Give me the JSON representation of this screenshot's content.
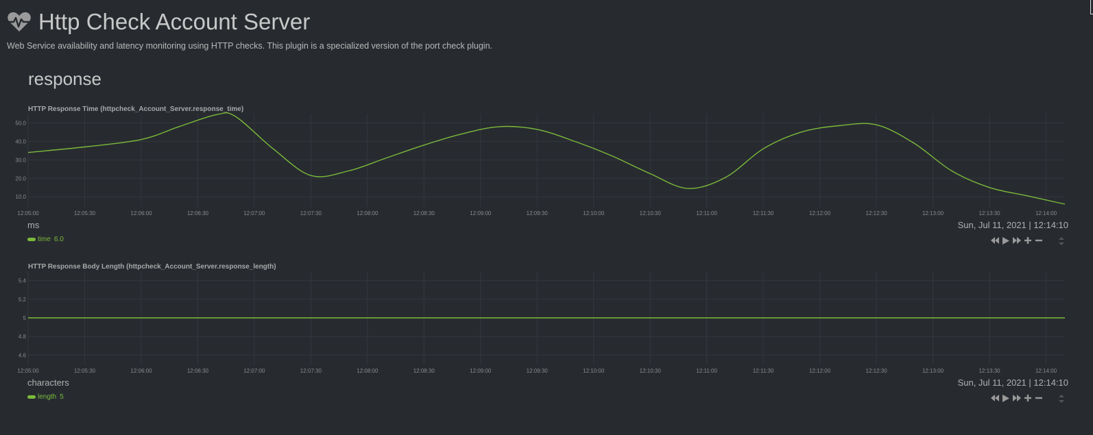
{
  "header": {
    "title": "Http Check Account Server",
    "subtitle": "Web Service availability and latency monitoring using HTTP checks. This plugin is a specialized version of the port check plugin.",
    "icon": "heartbeat-icon"
  },
  "section": {
    "title": "response"
  },
  "colors": {
    "background": "#272b30",
    "series": "#7cba3a",
    "grid": "#34383e",
    "text": "#c8c8c8"
  },
  "charts": [
    {
      "title": "HTTP Response Time (httpcheck_Account_Server.response_time)",
      "unit": "ms",
      "date": "Sun, Jul 11, 2021 | 12:14:10",
      "legend": {
        "name": "time",
        "value": "6.0"
      }
    },
    {
      "title": "HTTP Response Body Length (httpcheck_Account_Server.response_length)",
      "unit": "characters",
      "date": "Sun, Jul 11, 2021 | 12:14:10",
      "legend": {
        "name": "length",
        "value": "5"
      }
    }
  ],
  "toolbox": [
    "rewind-icon",
    "play-icon",
    "fast-forward-icon",
    "zoom-in-icon",
    "zoom-out-icon"
  ],
  "chart_data": [
    {
      "type": "line",
      "title": "HTTP Response Time (httpcheck_Account_Server.response_time)",
      "ylabel": "ms",
      "ylim": [
        4.5,
        55
      ],
      "yticks": [
        "10.0",
        "20.0",
        "30.0",
        "40.0",
        "50.0"
      ],
      "ytick_values": [
        10,
        20,
        30,
        40,
        50
      ],
      "xlim": [
        "12:05:00",
        "12:14:10"
      ],
      "xticks": [
        "12:05:00",
        "12:05:30",
        "12:06:00",
        "12:06:30",
        "12:07:00",
        "12:07:30",
        "12:08:00",
        "12:08:30",
        "12:09:00",
        "12:09:30",
        "12:10:00",
        "12:10:30",
        "12:11:00",
        "12:11:30",
        "12:12:00",
        "12:12:30",
        "12:13:00",
        "12:13:30",
        "12:14:00"
      ],
      "grid": true,
      "series": [
        {
          "name": "time",
          "x": [
            "12:05:00",
            "12:05:30",
            "12:06:00",
            "12:06:20",
            "12:06:40",
            "12:06:50",
            "12:07:10",
            "12:07:30",
            "12:07:50",
            "12:08:10",
            "12:08:30",
            "12:08:50",
            "12:09:10",
            "12:09:30",
            "12:09:50",
            "12:10:10",
            "12:10:30",
            "12:10:50",
            "12:11:10",
            "12:11:30",
            "12:11:50",
            "12:12:10",
            "12:12:30",
            "12:12:50",
            "12:13:10",
            "12:13:30",
            "12:13:50",
            "12:14:10"
          ],
          "values": [
            34.0,
            37.0,
            41.0,
            48.0,
            54.5,
            53.5,
            36.0,
            21.5,
            24.0,
            31.0,
            38.0,
            44.0,
            48.0,
            46.5,
            40.0,
            32.0,
            22.5,
            14.5,
            20.5,
            36.0,
            45.0,
            48.5,
            49.0,
            39.0,
            24.0,
            15.0,
            10.5,
            6.0
          ]
        }
      ]
    },
    {
      "type": "line",
      "title": "HTTP Response Body Length (httpcheck_Account_Server.response_length)",
      "ylabel": "characters",
      "ylim": [
        4.5,
        5.5
      ],
      "yticks": [
        "4.6",
        "4.8",
        "5",
        "5.2",
        "5.4"
      ],
      "ytick_values": [
        4.6,
        4.8,
        5.0,
        5.2,
        5.4
      ],
      "xlim": [
        "12:05:00",
        "12:14:10"
      ],
      "xticks": [
        "12:05:00",
        "12:05:30",
        "12:06:00",
        "12:06:30",
        "12:07:00",
        "12:07:30",
        "12:08:00",
        "12:08:30",
        "12:09:00",
        "12:09:30",
        "12:10:00",
        "12:10:30",
        "12:11:00",
        "12:11:30",
        "12:12:00",
        "12:12:30",
        "12:13:00",
        "12:13:30",
        "12:14:00"
      ],
      "grid": true,
      "series": [
        {
          "name": "length",
          "x": [
            "12:05:00",
            "12:14:10"
          ],
          "values": [
            5,
            5
          ]
        }
      ]
    }
  ]
}
